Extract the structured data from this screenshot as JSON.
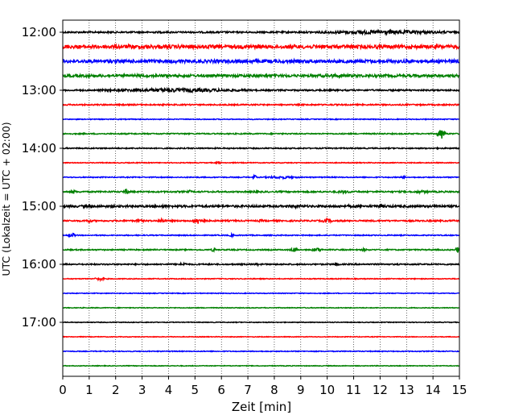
{
  "chart_data": {
    "type": "line",
    "title": "",
    "xlabel": "Zeit  [min]",
    "ylabel": "UTC (Lokalzeit = UTC + 02:00)",
    "xlim": [
      0,
      15
    ],
    "x_ticks": [
      "0",
      "1",
      "2",
      "3",
      "4",
      "5",
      "6",
      "7",
      "8",
      "9",
      "10",
      "11",
      "12",
      "13",
      "14",
      "15"
    ],
    "y_tick_labels": [
      "12:00",
      "13:00",
      "14:00",
      "15:00",
      "16:00",
      "17:00"
    ],
    "grid": "vertical dotted",
    "trace_interval_minutes": 15,
    "series_colors": [
      "#000000",
      "#ff0000",
      "#0000ff",
      "#008000"
    ],
    "traces": [
      {
        "start": "12:00",
        "color": "#000000",
        "base": 1.0,
        "bursts": [
          [
            9.2,
            15,
            2.6
          ]
        ]
      },
      {
        "start": "12:15",
        "color": "#ff0000",
        "base": 2.2,
        "bursts": []
      },
      {
        "start": "12:30",
        "color": "#0000ff",
        "base": 2.0,
        "bursts": []
      },
      {
        "start": "12:45",
        "color": "#008000",
        "base": 1.6,
        "bursts": [
          [
            9.5,
            11,
            2.4
          ]
        ]
      },
      {
        "start": "13:00",
        "color": "#000000",
        "base": 0.9,
        "bursts": [
          [
            1.3,
            7.2,
            2.6
          ]
        ]
      },
      {
        "start": "13:15",
        "color": "#ff0000",
        "base": 0.8,
        "bursts": []
      },
      {
        "start": "13:30",
        "color": "#0000ff",
        "base": 0.5,
        "bursts": []
      },
      {
        "start": "13:45",
        "color": "#008000",
        "base": 0.7,
        "bursts": [
          [
            14.15,
            14.5,
            6.5
          ]
        ]
      },
      {
        "start": "14:00",
        "color": "#000000",
        "base": 0.7,
        "bursts": []
      },
      {
        "start": "14:15",
        "color": "#ff0000",
        "base": 0.5,
        "bursts": [
          [
            5.8,
            6.0,
            1.8
          ]
        ]
      },
      {
        "start": "14:30",
        "color": "#0000ff",
        "base": 0.6,
        "bursts": [
          [
            7.2,
            7.3,
            5
          ],
          [
            7.6,
            9.0,
            1.8
          ],
          [
            12.8,
            12.95,
            2.5
          ]
        ]
      },
      {
        "start": "14:45",
        "color": "#008000",
        "base": 0.9,
        "bursts": [
          [
            0.3,
            0.5,
            3
          ],
          [
            2.3,
            2.5,
            4
          ],
          [
            4.7,
            4.9,
            2
          ],
          [
            7.2,
            7.4,
            3
          ],
          [
            10.3,
            11,
            2
          ],
          [
            13.1,
            14.0,
            1.8
          ]
        ]
      },
      {
        "start": "15:00",
        "color": "#000000",
        "base": 1.3,
        "bursts": [
          [
            1.0,
            1.2,
            2
          ],
          [
            3.7,
            3.9,
            2
          ],
          [
            8.2,
            9.4,
            2
          ],
          [
            10.7,
            11.0,
            2
          ],
          [
            11.5,
            12.6,
            2
          ],
          [
            14.0,
            14.4,
            2.5
          ]
        ]
      },
      {
        "start": "15:15",
        "color": "#ff0000",
        "base": 0.9,
        "bursts": [
          [
            0.8,
            1.2,
            2
          ],
          [
            2.7,
            3.1,
            2
          ],
          [
            3.6,
            3.9,
            3
          ],
          [
            4.9,
            5.4,
            4.5
          ],
          [
            7.4,
            7.6,
            2
          ],
          [
            9.8,
            10.2,
            3
          ]
        ]
      },
      {
        "start": "15:30",
        "color": "#0000ff",
        "base": 0.6,
        "bursts": [
          [
            0.2,
            0.5,
            3
          ],
          [
            6.3,
            6.5,
            2
          ]
        ]
      },
      {
        "start": "15:45",
        "color": "#008000",
        "base": 0.7,
        "bursts": [
          [
            5.6,
            5.8,
            2.5
          ],
          [
            8.6,
            8.9,
            3
          ],
          [
            9.4,
            9.8,
            3
          ],
          [
            11.3,
            11.5,
            2.2
          ],
          [
            14.85,
            15,
            4
          ]
        ]
      },
      {
        "start": "16:00",
        "color": "#000000",
        "base": 0.8,
        "bursts": [
          [
            4.3,
            4.8,
            2
          ],
          [
            7.2,
            7.5,
            1.6
          ],
          [
            10.2,
            10.5,
            2
          ]
        ]
      },
      {
        "start": "16:15",
        "color": "#ff0000",
        "base": 0.5,
        "bursts": [
          [
            1.2,
            1.6,
            2.2
          ]
        ]
      },
      {
        "start": "16:30",
        "color": "#0000ff",
        "base": 0.45,
        "bursts": []
      },
      {
        "start": "16:45",
        "color": "#008000",
        "base": 0.45,
        "bursts": []
      },
      {
        "start": "17:00",
        "color": "#000000",
        "base": 0.45,
        "bursts": []
      },
      {
        "start": "17:15",
        "color": "#ff0000",
        "base": 0.4,
        "bursts": []
      },
      {
        "start": "17:30",
        "color": "#0000ff",
        "base": 0.5,
        "bursts": []
      },
      {
        "start": "17:45",
        "color": "#008000",
        "base": 0.4,
        "bursts": []
      }
    ]
  }
}
